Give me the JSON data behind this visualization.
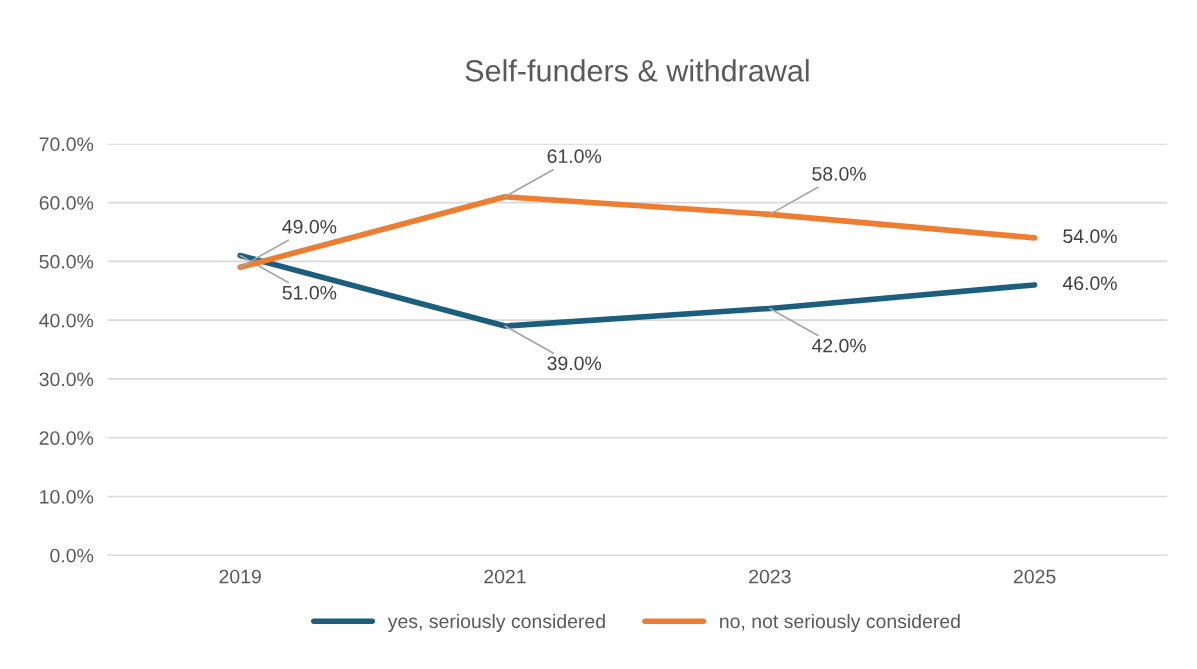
{
  "chart_data": {
    "type": "line",
    "title": "Self-funders & withdrawal",
    "categories": [
      "2019",
      "2021",
      "2023",
      "2025"
    ],
    "series": [
      {
        "name": "yes, seriously considered",
        "color": "#1b5e7e",
        "values": [
          51,
          39,
          42,
          46
        ],
        "value_labels": [
          "51.0%",
          "39.0%",
          "42.0%",
          "46.0%"
        ]
      },
      {
        "name": "no, not seriously considered",
        "color": "#ed7d31",
        "values": [
          49,
          61,
          58,
          54
        ],
        "value_labels": [
          "49.0%",
          "61.0%",
          "58.0%",
          "54.0%"
        ]
      }
    ],
    "ylim": [
      0,
      70
    ],
    "yticks": [
      {
        "value": 0,
        "label": "0.0%"
      },
      {
        "value": 10,
        "label": "10.0%"
      },
      {
        "value": 20,
        "label": "20.0%"
      },
      {
        "value": 30,
        "label": "30.0%"
      },
      {
        "value": 40,
        "label": "40.0%"
      },
      {
        "value": 50,
        "label": "50.0%"
      },
      {
        "value": 60,
        "label": "60.0%"
      },
      {
        "value": 70,
        "label": "70.0%"
      }
    ],
    "grid": "y",
    "legend": "bottom",
    "marker": "none",
    "line_style": "solid"
  }
}
